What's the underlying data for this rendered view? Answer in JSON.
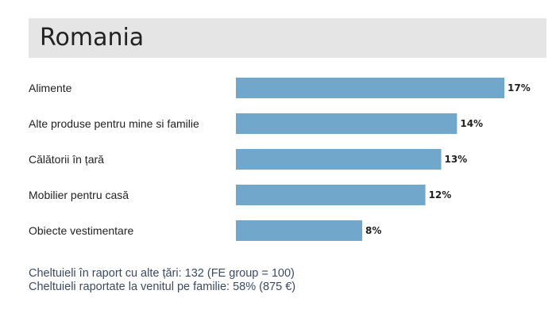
{
  "header": {
    "title": "Romania"
  },
  "chart_data": {
    "type": "bar",
    "orientation": "horizontal",
    "title": "Romania",
    "categories": [
      "Alimente",
      "Alte produse pentru mine si familie",
      "Călătorii în țară",
      "Mobilier pentru casă",
      "Obiecte vestimentare"
    ],
    "values": [
      17,
      14,
      13,
      12,
      8
    ],
    "value_labels": [
      "17%",
      "14%",
      "13%",
      "12%",
      "8%"
    ],
    "unit": "%",
    "xlim": [
      0,
      17
    ],
    "grid": false,
    "legend": "none",
    "bar_color": "#71a7ca"
  },
  "footer": {
    "line1": "Cheltuieli în raport cu alte țări: 132 (FE group = 100)",
    "line2": "Cheltuieli raportate la venitul pe familie: 58% (875 €)"
  }
}
